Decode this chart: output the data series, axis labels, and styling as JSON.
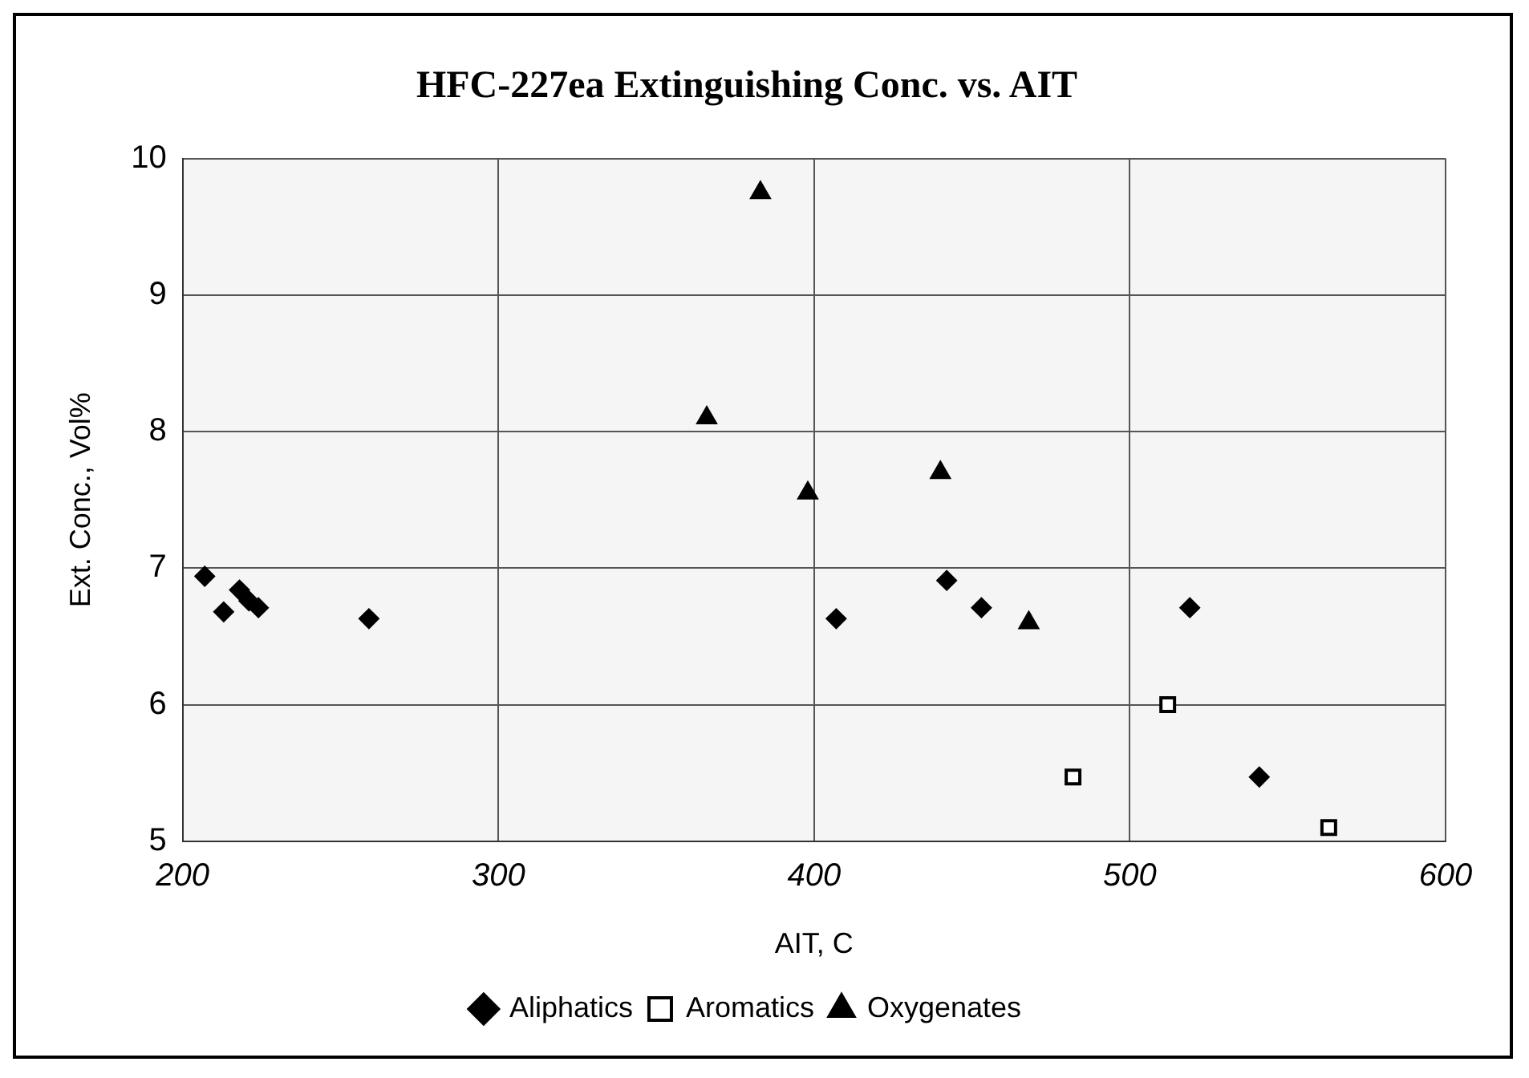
{
  "chart_data": {
    "type": "scatter",
    "title": "HFC-227ea Extinguishing Conc. vs. AIT",
    "xlabel": "AIT, C",
    "ylabel": "Ext. Conc., Vol%",
    "xlim": [
      200,
      600
    ],
    "xticks": [
      200,
      300,
      400,
      500,
      600
    ],
    "ylim": [
      5,
      10
    ],
    "yticks": [
      5,
      6,
      7,
      8,
      9,
      10
    ],
    "grid": true,
    "legend": "bottom",
    "series": [
      {
        "name": "Aliphatics",
        "color": "#000000",
        "marker": "diamond",
        "x": [
          207,
          213,
          218,
          221,
          224,
          259,
          407,
          442,
          453,
          519,
          541
        ],
        "values": [
          6.94,
          6.68,
          6.84,
          6.76,
          6.71,
          6.63,
          6.63,
          6.91,
          6.71,
          6.71,
          5.47
        ]
      },
      {
        "name": "Aromatics",
        "color": "#000000",
        "marker": "square",
        "x": [
          482,
          512,
          563
        ],
        "values": [
          5.47,
          6.0,
          5.1
        ]
      },
      {
        "name": "Oxygenates",
        "color": "#000000",
        "marker": "triangle",
        "x": [
          383,
          366,
          398,
          440,
          468
        ],
        "values": [
          9.75,
          8.1,
          7.55,
          7.7,
          6.6
        ]
      }
    ]
  }
}
